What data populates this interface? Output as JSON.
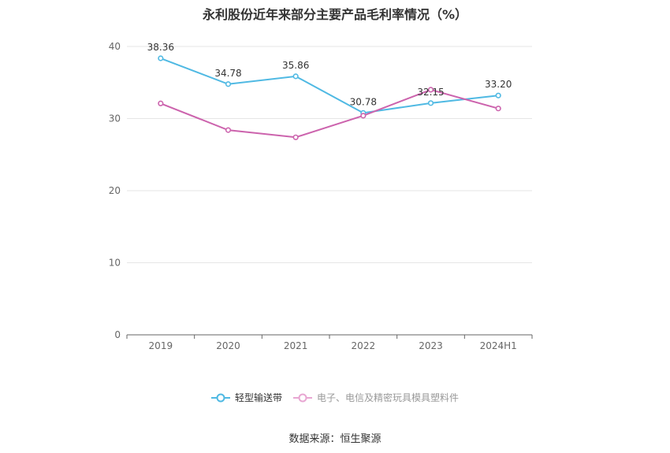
{
  "chart_data": {
    "type": "line",
    "title": "永利股份近年来部分主要产品毛利率情况（%）",
    "categories": [
      "2019",
      "2020",
      "2021",
      "2022",
      "2023",
      "2024H1"
    ],
    "series": [
      {
        "name": "轻型输送带",
        "values": [
          38.36,
          34.78,
          35.86,
          30.78,
          32.15,
          33.2
        ],
        "labels": [
          "38.36",
          "34.78",
          "35.86",
          "30.78",
          "32.15",
          "33.20"
        ],
        "color": "#4fb9e3"
      },
      {
        "name": "电子、电信及精密玩具模具塑料件",
        "values": [
          32.1,
          28.4,
          27.4,
          30.4,
          34.0,
          31.4
        ],
        "color": "#cc63ad"
      }
    ],
    "ylim": [
      0,
      40
    ],
    "yticks": [
      "0",
      "10",
      "20",
      "30",
      "40"
    ],
    "grid": true,
    "legend": "bottom"
  },
  "footer": {
    "source": "数据来源：恒生聚源"
  }
}
